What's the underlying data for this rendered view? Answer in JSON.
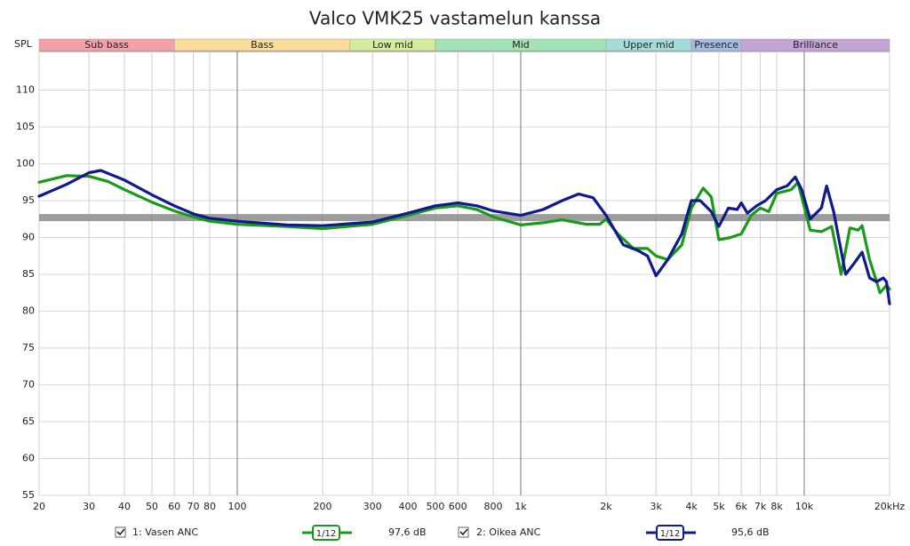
{
  "chart_data": {
    "type": "line",
    "title": "Valco VMK25 vastamelun kanssa",
    "y_label": "SPL",
    "xscale": "log",
    "xlim": [
      20,
      20000
    ],
    "ylim": [
      55,
      115
    ],
    "xticks": [
      20,
      30,
      40,
      50,
      60,
      70,
      80,
      100,
      200,
      300,
      400,
      500,
      600,
      800,
      {
        "value": 1000,
        "label": "1k"
      },
      {
        "value": 2000,
        "label": "2k"
      },
      {
        "value": 3000,
        "label": "3k"
      },
      {
        "value": 4000,
        "label": "4k"
      },
      {
        "value": 5000,
        "label": "5k"
      },
      {
        "value": 6000,
        "label": "6k"
      },
      {
        "value": 7000,
        "label": "7k"
      },
      {
        "value": 8000,
        "label": "8k"
      },
      {
        "value": 10000,
        "label": "10k"
      },
      {
        "value": 20000,
        "label": "20kHz"
      }
    ],
    "yticks": [
      55,
      60,
      65,
      70,
      75,
      80,
      85,
      90,
      95,
      100,
      105,
      110
    ],
    "grid": true,
    "reference_level": 92.7,
    "bands": [
      {
        "name": "Sub bass",
        "start": 20,
        "end": 60,
        "color": "#f4a0a8"
      },
      {
        "name": "Bass",
        "start": 60,
        "end": 250,
        "color": "#fbdc9a"
      },
      {
        "name": "Low mid",
        "start": 250,
        "end": 500,
        "color": "#d4ec9c"
      },
      {
        "name": "Mid",
        "start": 500,
        "end": 2000,
        "color": "#a4e4b4"
      },
      {
        "name": "Upper mid",
        "start": 2000,
        "end": 4000,
        "color": "#a4dcdc"
      },
      {
        "name": "Presence",
        "start": 4000,
        "end": 6000,
        "color": "#a4bce4"
      },
      {
        "name": "Brilliance",
        "start": 6000,
        "end": 20000,
        "color": "#c4a4d8"
      }
    ],
    "series": [
      {
        "name": "1: Vasen ANC",
        "color": "#1a9a1a",
        "smoothing": "1/12",
        "level_label": "97,6 dB",
        "x": [
          20,
          25,
          30,
          35,
          40,
          50,
          60,
          70,
          80,
          100,
          150,
          200,
          300,
          400,
          500,
          600,
          700,
          800,
          1000,
          1200,
          1400,
          1700,
          1900,
          2000,
          2200,
          2500,
          2800,
          3000,
          3300,
          3700,
          4000,
          4400,
          4700,
          5000,
          5500,
          6000,
          6500,
          7000,
          7500,
          8000,
          9000,
          9500,
          10500,
          11500,
          12500,
          13500,
          14500,
          15500,
          16000,
          17000,
          18000,
          18500,
          19500,
          20000
        ],
        "values": [
          97.5,
          98.4,
          98.3,
          97.6,
          96.5,
          94.8,
          93.6,
          92.8,
          92.2,
          91.8,
          91.5,
          91.2,
          91.8,
          93,
          94,
          94.3,
          93.8,
          92.8,
          91.7,
          92,
          92.4,
          91.8,
          91.8,
          92.5,
          90.5,
          88.5,
          88.5,
          87.5,
          87,
          89,
          94,
          96.7,
          95.5,
          89.7,
          90,
          90.5,
          93,
          94,
          93.5,
          96,
          96.5,
          97.5,
          91,
          90.8,
          91.5,
          85,
          91.3,
          91,
          91.6,
          87,
          84,
          82.5,
          83.5,
          83
        ]
      },
      {
        "name": "2: Oikea ANC",
        "color": "#101a8c",
        "smoothing": "1/12",
        "level_label": "95,6 dB",
        "x": [
          20,
          25,
          30,
          33,
          40,
          50,
          60,
          70,
          80,
          100,
          150,
          200,
          300,
          400,
          500,
          600,
          700,
          800,
          1000,
          1200,
          1400,
          1600,
          1800,
          2000,
          2300,
          2600,
          2800,
          3000,
          3300,
          3700,
          4000,
          4300,
          4700,
          5000,
          5400,
          5800,
          6000,
          6300,
          6800,
          7300,
          8000,
          8700,
          9300,
          9800,
          10500,
          11500,
          12000,
          12700,
          14000,
          15000,
          16000,
          17000,
          18000,
          19000,
          19500,
          20000
        ],
        "values": [
          95.6,
          97.2,
          98.8,
          99.1,
          97.8,
          95.8,
          94.3,
          93.2,
          92.6,
          92.2,
          91.7,
          91.6,
          92.1,
          93.3,
          94.3,
          94.7,
          94.3,
          93.6,
          93,
          93.8,
          95,
          95.9,
          95.4,
          93,
          89,
          88.2,
          87.5,
          84.8,
          87,
          90.5,
          95,
          95,
          93.5,
          91.5,
          94,
          93.8,
          94.7,
          93.3,
          94.3,
          95,
          96.5,
          97,
          98.2,
          96.5,
          92.5,
          94,
          97,
          93.5,
          85,
          86.5,
          88,
          84.5,
          84,
          84.5,
          84,
          81
        ]
      }
    ]
  }
}
